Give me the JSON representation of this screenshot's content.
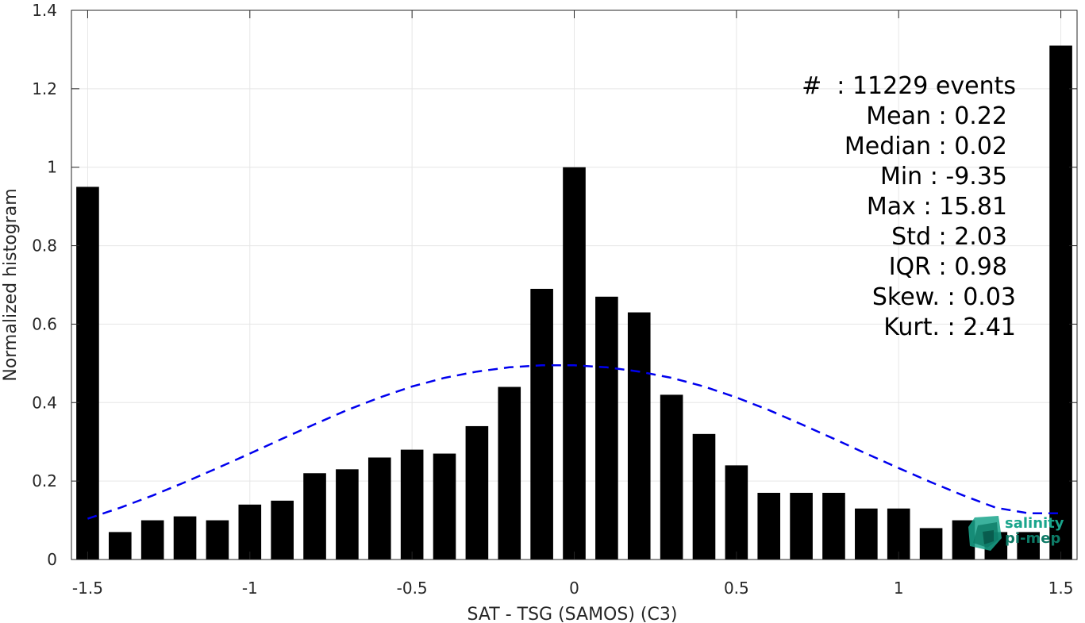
{
  "chart_data": {
    "type": "bar",
    "xlabel": "SAT - TSG (SAMOS) (C3)",
    "ylabel": "Normalized histogram",
    "xlim": [
      -1.55,
      1.55
    ],
    "ylim": [
      0,
      1.4
    ],
    "xticks": [
      -1.5,
      -1,
      -0.5,
      0,
      0.5,
      1,
      1.5
    ],
    "xtick_labels": [
      "-1.5",
      "-1",
      "-0.5",
      "0",
      "0.5",
      "1",
      "1.5"
    ],
    "yticks": [
      0,
      0.2,
      0.4,
      0.6,
      0.8,
      1,
      1.2,
      1.4
    ],
    "ytick_labels": [
      "0",
      "0.2",
      "0.4",
      "0.6",
      "0.8",
      "1",
      "1.2",
      "1.4"
    ],
    "grid": true,
    "bar_width": 0.07,
    "bar_color": "#000000",
    "x": [
      -1.5,
      -1.4,
      -1.3,
      -1.2,
      -1.1,
      -1.0,
      -0.9,
      -0.8,
      -0.7,
      -0.6,
      -0.5,
      -0.4,
      -0.3,
      -0.2,
      -0.1,
      0.0,
      0.1,
      0.2,
      0.3,
      0.4,
      0.5,
      0.6,
      0.7,
      0.8,
      0.9,
      1.0,
      1.1,
      1.2,
      1.3,
      1.4,
      1.5
    ],
    "values": [
      0.95,
      0.07,
      0.1,
      0.11,
      0.1,
      0.14,
      0.15,
      0.22,
      0.23,
      0.26,
      0.28,
      0.27,
      0.34,
      0.44,
      0.69,
      1.0,
      0.67,
      0.63,
      0.42,
      0.32,
      0.24,
      0.17,
      0.17,
      0.17,
      0.13,
      0.13,
      0.08,
      0.1,
      0.07,
      0.07,
      1.31
    ],
    "fit_curve": {
      "style": "dashed",
      "color": "#0000ee",
      "x": [
        -1.5,
        -1.4,
        -1.3,
        -1.2,
        -1.1,
        -1.0,
        -0.9,
        -0.8,
        -0.7,
        -0.6,
        -0.5,
        -0.4,
        -0.3,
        -0.2,
        -0.1,
        0.0,
        0.1,
        0.2,
        0.3,
        0.4,
        0.5,
        0.6,
        0.7,
        0.8,
        0.9,
        1.0,
        1.1,
        1.2,
        1.3,
        1.4,
        1.5
      ],
      "y": [
        0.104,
        0.132,
        0.163,
        0.197,
        0.233,
        0.27,
        0.308,
        0.345,
        0.381,
        0.413,
        0.441,
        0.463,
        0.479,
        0.49,
        0.495,
        0.495,
        0.49,
        0.479,
        0.463,
        0.441,
        0.413,
        0.381,
        0.345,
        0.308,
        0.27,
        0.233,
        0.197,
        0.163,
        0.132,
        0.118,
        0.118
      ]
    },
    "stats": [
      "#  : 11229 events",
      "Mean : 0.22",
      "Median : 0.02",
      "Min : -9.35",
      "Max : 15.81",
      "Std : 2.03",
      "IQR : 0.98",
      "Skew. : 0.03",
      "Kurt. : 2.41"
    ]
  },
  "logo": {
    "line1": "salinity",
    "line2": "pi-mep",
    "color": "#1aa58c"
  }
}
